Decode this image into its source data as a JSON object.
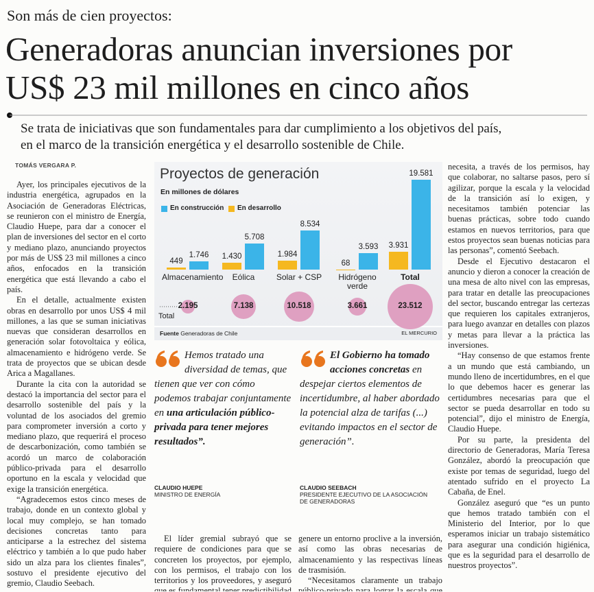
{
  "header": {
    "kicker": "Son más de cien proyectos:",
    "headline": [
      "Generadoras anuncian inversiones por",
      "US$ 23 mil millones en cinco años"
    ],
    "deck": [
      "Se trata de iniciativas que son fundamentales para dar cumplimiento a los objetivos del país,",
      "en el marco de la transición energética y el desarrollo sostenible de Chile."
    ],
    "byline": "TOMÁS VERGARA P."
  },
  "columns": {
    "left": [
      "Ayer, los principales ejecutivos de la industria energética, agrupados en la Asociación de Generadoras Eléctricas, se reunieron con el ministro de Energía, Claudio Huepe, para dar a conocer el plan de inversiones del sector en el corto y mediano plazo, anunciando proyectos por más de US$ 23 mil millones a cinco años, enfocados en la transición energética que está llevando a cabo el país.",
      "En el detalle, actualmente existen obras en desarrollo por unos US$ 4 mil millones, a las que se suman iniciativas nuevas que consideran desarrollos en generación solar fotovoltaica y eólica, almacenamiento e hidrógeno verde. Se trata de proyectos que se ubican desde Arica a Magallanes.",
      "Durante la cita con la autoridad se destacó la importancia del sector para el desarrollo sostenible del país y la voluntad de los asociados del gremio para comprometer inversión a corto y mediano plazo, que requerirá el proceso de descarbonización, como también se acordó un marco de colaboración público-privada para el desarrollo oportuno en la escala y velocidad que exige la transición energética.",
      "“Agradecemos estos cinco meses de trabajo, donde en un contexto global y local muy complejo, se han tomado decisiones concretas tanto para anticiparse a la estrechez del sistema eléctrico y también a lo que pudo haber sido un alza para los clientes finales”, sostuvo el presidente ejecutivo del gremio, Claudio Seebach."
    ],
    "middle_left": [
      "El líder gremial subrayó que se requiere de condiciones para que se concreten los proyectos, por ejemplo, con los permisos, el trabajo con los territorios y los proveedores, y aseguró que es fundamental tener predictibilidad regulatoria y que se"
    ],
    "middle_right": [
      "genere un entorno proclive a la inversión, así como las obras necesarias de almacenamiento y las respectivas líneas de trasmisión.",
      "“Necesitamos claramente un trabajo público-privado para lograr la escala que la transición energética"
    ],
    "right": [
      "necesita, a través de los permisos, hay que colaborar, no saltarse pasos, pero sí agilizar, porque la escala y la velocidad de la transición así lo exigen, y necesitamos también potenciar las buenas prácticas, sobre todo cuando estamos en nuevos territorios, para que estos proyectos sean buenas noticias para las personas”, comentó Seebach.",
      "Desde el Ejecutivo destacaron el anuncio y dieron a conocer la creación de una mesa de alto nivel con las empresas, para tratar en detalle las preocupaciones del sector, buscando entregar las certezas que requieren los capitales extranjeros, para luego avanzar en detalles con plazos y metas para llevar a la práctica las inversiones.",
      "“Hay consenso de que estamos frente a un mundo que está cambiando, un mundo lleno de incertidumbres, en el que lo que debemos hacer es generar las certidumbres necesarias para que el sector se pueda desarrollar en todo su potencial”, dijo el ministro de Energía, Claudio Huepe.",
      "Por su parte, la presidenta del directorio de Generadoras, María Teresa González, abordó la preocupación que existe por temas de seguridad, luego del atentado sufrido en el proyecto La Cabaña, de Enel.",
      "González aseguró que “es un punto que hemos tratado también con el Ministerio del Interior, por lo que esperamos iniciar un trabajo sistemático para asegurar una condición higiénica, que es la seguridad para el desarrollo de nuestros proyectos”."
    ]
  },
  "quotes": [
    {
      "parts": [
        {
          "text": "Hemos tratado una diversidad de temas, que tienen que ver con cómo podemos trabajar conjuntamente en ",
          "bold": false
        },
        {
          "text": "una articulación público-privada para tener mejores resultados”.",
          "bold": true
        }
      ],
      "name": "CLAUDIO HUEPE",
      "role": "MINISTRO DE ENERGÍA"
    },
    {
      "parts": [
        {
          "text": "El Gobierno ha tomado acciones concretas ",
          "bold": true
        },
        {
          "text": "en despejar ciertos elementos de incertidumbre, al haber abordado la potencial alza de tarifas (...) evitando impactos en el sector de generación”.",
          "bold": false
        }
      ],
      "name": "CLAUDIO SEEBACH",
      "role": "PRESIDENTE EJECUTIVO DE LA ASOCIACIÓN DE GENERADORAS"
    }
  ],
  "chart_data": {
    "type": "bar",
    "title": "Proyectos de generación",
    "subtitle": "En millones de dólares",
    "categories": [
      "Almacenamiento",
      "Eólica",
      "Solar + CSP",
      "Hidrógeno verde",
      "Total"
    ],
    "series": [
      {
        "name": "En construcción",
        "color": "#3bb4e8",
        "values": [
          1746,
          5708,
          8534,
          3593,
          19581
        ],
        "value_labels": [
          "1.746",
          "5.708",
          "8.534",
          "3.593",
          "19.581"
        ]
      },
      {
        "name": "En desarrollo",
        "color": "#f5b820",
        "values": [
          449,
          1430,
          1984,
          68,
          3931
        ],
        "value_labels": [
          "449",
          "1.430",
          "1.984",
          "68",
          "3.931"
        ]
      }
    ],
    "totals": {
      "label": "Total",
      "color": "#dfa0c1",
      "values": [
        2195,
        7138,
        10518,
        3661,
        23512
      ],
      "value_labels": [
        "2.195",
        "7.138",
        "10.518",
        "3.661",
        "23.512"
      ]
    },
    "source_label": "Fuente",
    "source": "Generadoras de Chile",
    "credit": "EL MERCURIO"
  }
}
